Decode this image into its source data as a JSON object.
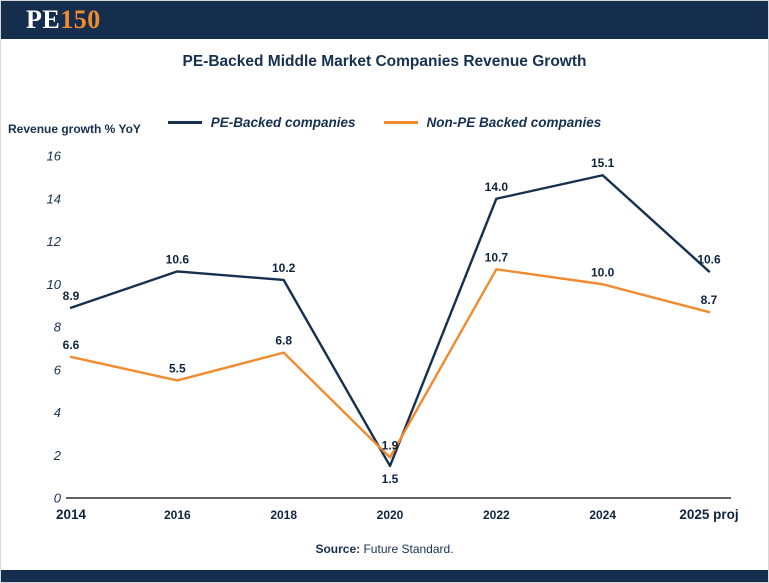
{
  "colors": {
    "navy": "#16304f",
    "orange": "#f28a2e",
    "header_bg": "#152e4e"
  },
  "header": {
    "logo_pe": "PE",
    "logo_150": "150"
  },
  "footer": {
    "source_label": "Source:",
    "source_text": " Future Standard."
  },
  "chart_data": {
    "type": "line",
    "title": "PE-Backed Middle Market Companies Revenue Growth",
    "ylabel": "Revenue growth % YoY",
    "xlabel": "",
    "categories": [
      "2014",
      "2016",
      "2018",
      "2020",
      "2022",
      "2024",
      "2025 proj"
    ],
    "series": [
      {
        "name": "PE-Backed companies",
        "color": "#16304f",
        "values": [
          8.9,
          10.6,
          10.2,
          1.5,
          14.0,
          15.1,
          10.6
        ]
      },
      {
        "name": "Non-PE Backed companies",
        "color": "#f28a2e",
        "values": [
          6.6,
          5.5,
          6.8,
          1.9,
          10.7,
          10.0,
          8.7
        ]
      }
    ],
    "ylim": [
      0,
      16
    ],
    "ytick_step": 2,
    "grid": false,
    "legend_position": "top-center"
  }
}
